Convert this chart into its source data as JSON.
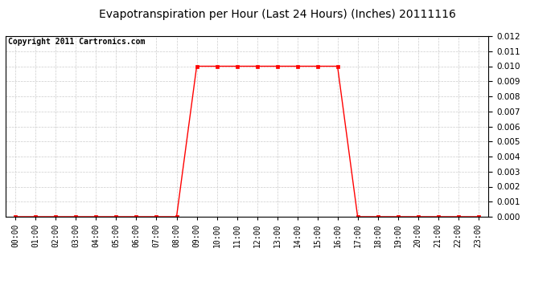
{
  "title": "Evapotranspiration per Hour (Last 24 Hours) (Inches) 20111116",
  "copyright": "Copyright 2011 Cartronics.com",
  "hours": [
    0,
    1,
    2,
    3,
    4,
    5,
    6,
    7,
    8,
    9,
    10,
    11,
    12,
    13,
    14,
    15,
    16,
    17,
    18,
    19,
    20,
    21,
    22,
    23
  ],
  "values": [
    0.0,
    0.0,
    0.0,
    0.0,
    0.0,
    0.0,
    0.0,
    0.0,
    0.0,
    0.01,
    0.01,
    0.01,
    0.01,
    0.01,
    0.01,
    0.01,
    0.01,
    0.0,
    0.0,
    0.0,
    0.0,
    0.0,
    0.0,
    0.0
  ],
  "x_labels": [
    "00:00",
    "01:00",
    "02:00",
    "03:00",
    "04:00",
    "05:00",
    "06:00",
    "07:00",
    "08:00",
    "09:00",
    "10:00",
    "11:00",
    "12:00",
    "13:00",
    "14:00",
    "15:00",
    "16:00",
    "17:00",
    "18:00",
    "19:00",
    "20:00",
    "21:00",
    "22:00",
    "23:00"
  ],
  "y_ticks": [
    0.0,
    0.001,
    0.002,
    0.003,
    0.004,
    0.005,
    0.006,
    0.007,
    0.008,
    0.009,
    0.01,
    0.011,
    0.012
  ],
  "ylim": [
    0.0,
    0.012
  ],
  "line_color": "#ff0000",
  "marker": "s",
  "markersize": 3,
  "background_color": "#ffffff",
  "plot_bg_color": "#ffffff",
  "grid_color": "#cccccc",
  "title_fontsize": 10,
  "copyright_fontsize": 7,
  "tick_fontsize": 7,
  "ytick_fontsize": 7.5
}
